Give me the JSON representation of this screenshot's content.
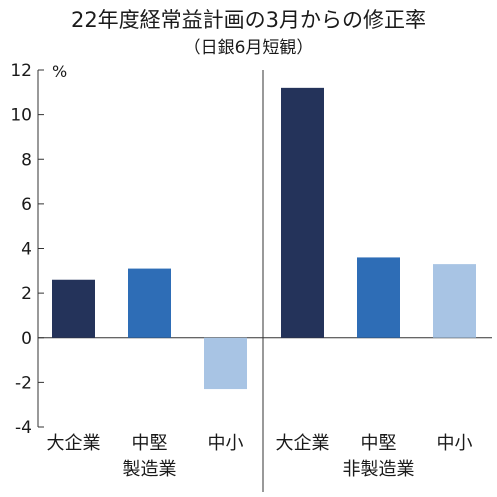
{
  "chart_data": {
    "type": "bar",
    "title": "22年度経常益計画の3月からの修正率",
    "subtitle": "（日銀6月短観）",
    "ylabel": "%",
    "ylim": [
      -4,
      12
    ],
    "yticks": [
      12,
      10,
      8,
      6,
      4,
      2,
      0,
      -2,
      -4
    ],
    "groups": [
      {
        "name": "製造業",
        "categories": [
          "大企業",
          "中堅",
          "中小"
        ],
        "values": [
          2.6,
          3.1,
          -2.3
        ]
      },
      {
        "name": "非製造業",
        "categories": [
          "大企業",
          "中堅",
          "中小"
        ],
        "values": [
          11.2,
          3.6,
          3.3
        ]
      }
    ],
    "colors": {
      "大企業": "#24335a",
      "中堅": "#2e6db6",
      "中小": "#a8c4e4"
    },
    "grid": false,
    "legend": "none"
  }
}
